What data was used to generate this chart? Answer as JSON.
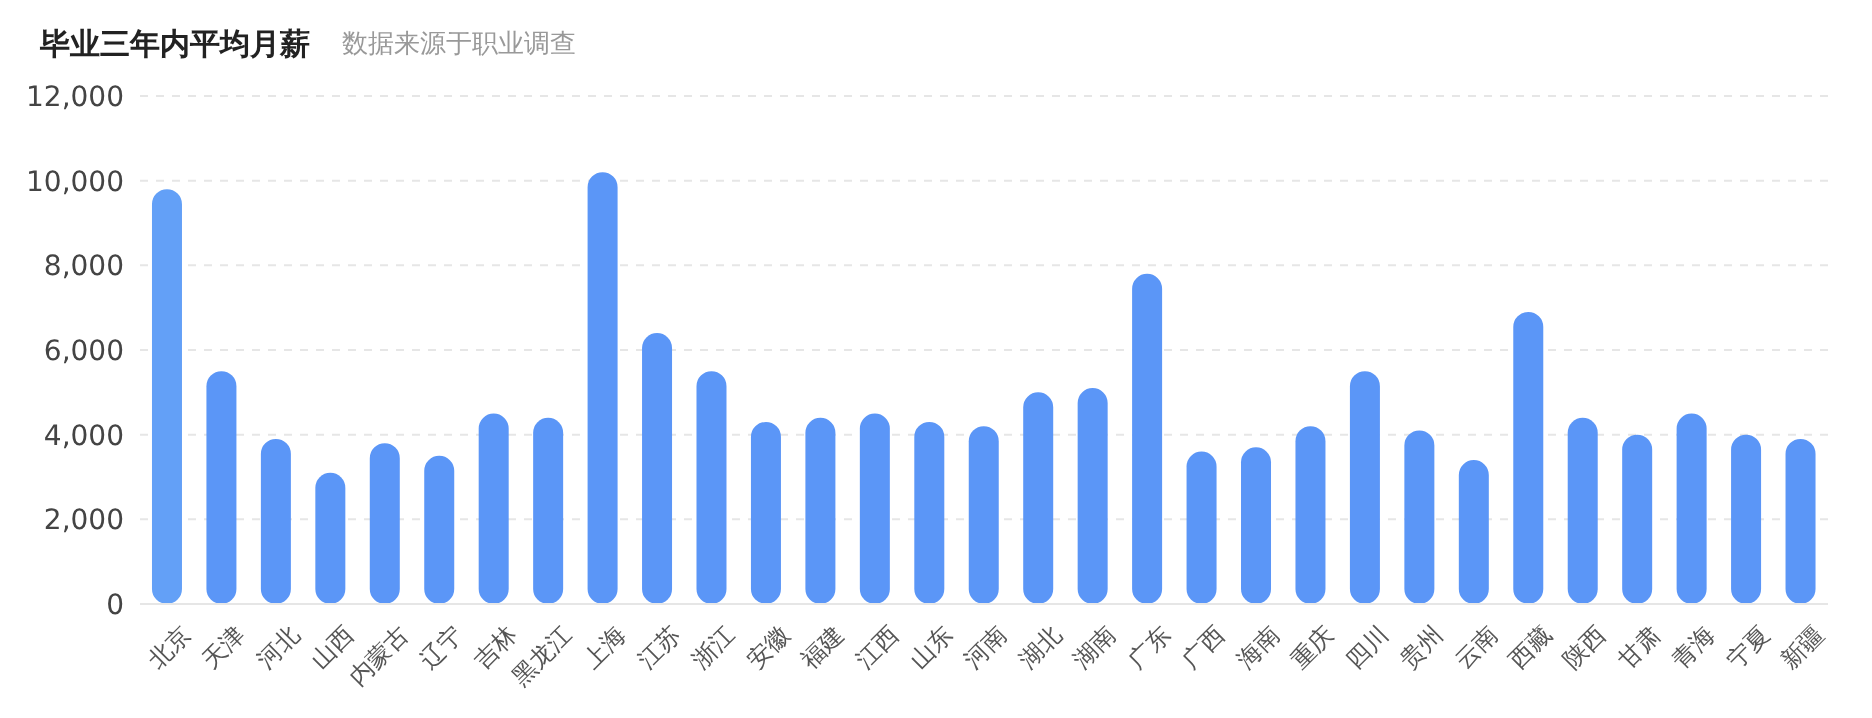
{
  "chart_data": {
    "type": "bar",
    "title": "毕业三年内平均月薪",
    "subtitle": "数据来源于职业调查",
    "categories": [
      "北京",
      "天津",
      "河北",
      "山西",
      "内蒙古",
      "辽宁",
      "吉林",
      "黑龙江",
      "上海",
      "江苏",
      "浙江",
      "安徽",
      "福建",
      "江西",
      "山东",
      "河南",
      "湖北",
      "湖南",
      "广东",
      "广西",
      "海南",
      "重庆",
      "四川",
      "贵州",
      "云南",
      "西藏",
      "陕西",
      "甘肃",
      "青海",
      "宁夏",
      "新疆"
    ],
    "values": [
      9800,
      5500,
      3900,
      3100,
      3800,
      3500,
      4500,
      4400,
      10200,
      6400,
      5500,
      4300,
      4400,
      4500,
      4300,
      4200,
      5000,
      5100,
      7800,
      3600,
      3700,
      4200,
      5500,
      4100,
      3400,
      6900,
      4400,
      4000,
      4500,
      4000,
      3900
    ],
    "colors": [
      "#63a0f7",
      "#5b96f7",
      "#5b96f7",
      "#5b96f7",
      "#5b96f7",
      "#5b96f7",
      "#5b96f7",
      "#5b96f7",
      "#5b96f7",
      "#5b96f7",
      "#5b96f7",
      "#5b96f7",
      "#5b96f7",
      "#5b96f7",
      "#5b96f7",
      "#5b96f7",
      "#5b96f7",
      "#5b96f7",
      "#5b96f7",
      "#5b96f7",
      "#5b96f7",
      "#5b96f7",
      "#5b96f7",
      "#5b96f7",
      "#5b96f7",
      "#5b96f7",
      "#5b96f7",
      "#5b96f7",
      "#5b96f7",
      "#5b96f7",
      "#5b96f7"
    ],
    "ylim": [
      0,
      12000
    ],
    "yticks": [
      0,
      {
        "value": 2000,
        "label": "2,000"
      },
      {
        "value": 4000,
        "label": "4,000"
      },
      {
        "value": 6000,
        "label": "6,000"
      },
      {
        "value": 8000,
        "label": "8,000"
      },
      {
        "value": 10000,
        "label": "10,000"
      },
      {
        "value": 12000,
        "label": "12,000"
      }
    ],
    "grid": "y"
  }
}
